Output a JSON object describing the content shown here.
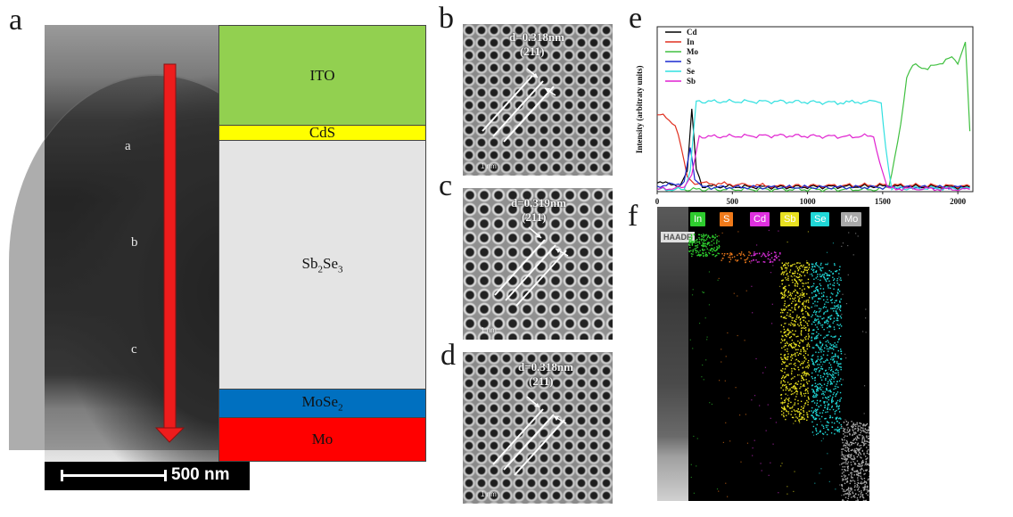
{
  "panel_letters": {
    "a": "a",
    "b": "b",
    "c": "c",
    "d": "d",
    "e": "e",
    "f": "f"
  },
  "panel_a": {
    "point_labels": [
      "a",
      "b",
      "c"
    ],
    "scale_bar": "500 nm",
    "layers": {
      "ito": "ITO",
      "cds": "CdS",
      "sb_base": "Sb",
      "sb_sub": "2",
      "se_base": "Se",
      "se_sub": "3",
      "mose_base": "MoSe",
      "mose_sub": "2",
      "mo": "Mo"
    },
    "colors": {
      "ito": "#92d050",
      "cds": "#ffff00",
      "sb2se3": "#e4e4e4",
      "mose2": "#0070c0",
      "mo": "#ff0000",
      "arrow": "#ee1c1c"
    }
  },
  "hrtem": [
    {
      "d": "d=0.318nm",
      "plane": "(211)",
      "scale": "1 nm"
    },
    {
      "d": "d=0.319nm",
      "plane": "(211)",
      "scale": "1 nm"
    },
    {
      "d": "d=0.318nm",
      "plane": "(211)",
      "scale": "1 nm"
    }
  ],
  "chart_data": {
    "type": "line",
    "title": "",
    "xlabel": "",
    "ylabel": "Intensity (arbitraty units)",
    "xlim": [
      0,
      2100
    ],
    "x_ticks": [
      "0",
      "500",
      "1000",
      "1500",
      "2000"
    ],
    "series": [
      {
        "name": "Cd",
        "color": "#000000",
        "points": [
          [
            0,
            8
          ],
          [
            150,
            6
          ],
          [
            200,
            20
          ],
          [
            230,
            75
          ],
          [
            260,
            20
          ],
          [
            300,
            5
          ],
          [
            800,
            4
          ],
          [
            1500,
            5
          ],
          [
            2080,
            4
          ]
        ]
      },
      {
        "name": "In",
        "color": "#e03020",
        "points": [
          [
            0,
            70
          ],
          [
            60,
            68
          ],
          [
            120,
            60
          ],
          [
            160,
            40
          ],
          [
            200,
            15
          ],
          [
            250,
            8
          ],
          [
            800,
            5
          ],
          [
            1500,
            6
          ],
          [
            2080,
            5
          ]
        ]
      },
      {
        "name": "Mo",
        "color": "#40c040",
        "points": [
          [
            0,
            2
          ],
          [
            800,
            2
          ],
          [
            1500,
            2
          ],
          [
            1540,
            5
          ],
          [
            1580,
            30
          ],
          [
            1620,
            60
          ],
          [
            1660,
            105
          ],
          [
            1700,
            115
          ],
          [
            1800,
            112
          ],
          [
            1900,
            118
          ],
          [
            1960,
            122
          ],
          [
            2000,
            118
          ],
          [
            2050,
            138
          ],
          [
            2080,
            55
          ]
        ]
      },
      {
        "name": "S",
        "color": "#1a2ad0",
        "points": [
          [
            0,
            5
          ],
          [
            180,
            8
          ],
          [
            220,
            40
          ],
          [
            250,
            10
          ],
          [
            300,
            4
          ],
          [
            800,
            4
          ],
          [
            1500,
            4
          ],
          [
            2080,
            4
          ]
        ]
      },
      {
        "name": "Se",
        "color": "#30e0e0",
        "points": [
          [
            0,
            2
          ],
          [
            180,
            2
          ],
          [
            220,
            20
          ],
          [
            260,
            82
          ],
          [
            800,
            82
          ],
          [
            1200,
            81
          ],
          [
            1490,
            82
          ],
          [
            1520,
            40
          ],
          [
            1560,
            3
          ],
          [
            2080,
            3
          ]
        ]
      },
      {
        "name": "Sb",
        "color": "#e020d0",
        "points": [
          [
            0,
            2
          ],
          [
            180,
            4
          ],
          [
            230,
            15
          ],
          [
            280,
            50
          ],
          [
            800,
            51
          ],
          [
            1300,
            50
          ],
          [
            1440,
            51
          ],
          [
            1480,
            25
          ],
          [
            1530,
            3
          ],
          [
            2080,
            2
          ]
        ]
      }
    ]
  },
  "panel_f": {
    "haadf": "HAADF",
    "elements": [
      {
        "name": "In",
        "color": "#2ecc2e"
      },
      {
        "name": "S",
        "color": "#f07a1a"
      },
      {
        "name": "Cd",
        "color": "#e030e0"
      },
      {
        "name": "Sb",
        "color": "#e8e020"
      },
      {
        "name": "Se",
        "color": "#20d8d8"
      },
      {
        "name": "Mo",
        "color": "#a8a8a8"
      }
    ]
  }
}
